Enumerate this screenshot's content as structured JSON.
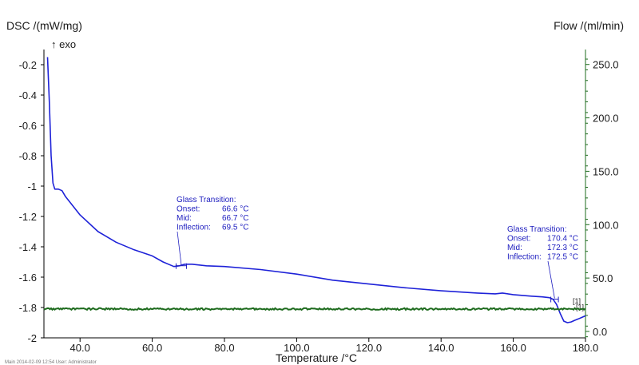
{
  "chart_data": {
    "type": "line",
    "left_axis": {
      "label": "DSC /(mW/mg)",
      "direction_note": "↑ exo",
      "range": [
        -2.0,
        -0.1
      ],
      "ticks": [
        -0.2,
        -0.4,
        -0.6,
        -0.8,
        -1,
        -1.2,
        -1.4,
        -1.6,
        -1.8,
        -2
      ],
      "tick_labels": [
        "-0.2",
        "-0.4",
        "-0.6",
        "-0.8",
        "-1",
        "-1.2",
        "-1.4",
        "-1.6",
        "-1.8",
        "-2"
      ]
    },
    "right_axis": {
      "label": "Flow /(ml/min)",
      "range": [
        -6,
        264
      ],
      "ticks": [
        0,
        50,
        100,
        150,
        200,
        250
      ],
      "tick_labels": [
        "0.0",
        "50.0",
        "100.0",
        "150.0",
        "200.0",
        "250.0"
      ]
    },
    "x_axis": {
      "label": "Temperature /°C",
      "range": [
        30,
        180
      ],
      "ticks": [
        40,
        60,
        80,
        100,
        120,
        140,
        160,
        180
      ],
      "tick_labels": [
        "40.0",
        "60.0",
        "80.0",
        "100.0",
        "120.0",
        "140.0",
        "160.0",
        "180.0"
      ]
    },
    "series": [
      {
        "axis": "left",
        "color": "#1e22d8",
        "x": [
          31.0,
          31.5,
          32.0,
          32.5,
          33.0,
          34.0,
          35.0,
          36.0,
          38.0,
          40.0,
          45.0,
          50.0,
          55.0,
          60.0,
          63.0,
          66.0,
          67.5,
          69.0,
          71.0,
          75.0,
          80.0,
          90.0,
          100.0,
          110.0,
          120.0,
          130.0,
          140.0,
          150.0,
          155.0,
          157.0,
          160.0,
          165.0,
          168.0,
          170.0,
          171.0,
          172.0,
          173.0,
          174.0,
          175.0,
          176.0,
          177.0,
          178.0,
          179.0,
          180.0
        ],
        "y": [
          -0.15,
          -0.45,
          -0.8,
          -0.98,
          -1.02,
          -1.02,
          -1.03,
          -1.07,
          -1.13,
          -1.19,
          -1.3,
          -1.37,
          -1.42,
          -1.46,
          -1.5,
          -1.53,
          -1.525,
          -1.515,
          -1.515,
          -1.525,
          -1.53,
          -1.55,
          -1.58,
          -1.62,
          -1.645,
          -1.67,
          -1.69,
          -1.705,
          -1.71,
          -1.705,
          -1.715,
          -1.725,
          -1.73,
          -1.735,
          -1.745,
          -1.78,
          -1.84,
          -1.89,
          -1.9,
          -1.895,
          -1.885,
          -1.875,
          -1.865,
          -1.855
        ],
        "end_label": "[1]"
      },
      {
        "axis": "right",
        "color": "#1e6b1e",
        "x": [
          30,
          180
        ],
        "y": [
          21,
          21
        ],
        "end_label": "[1]"
      }
    ],
    "annotations": [
      {
        "lines": [
          "Glass Transition:",
          "Onset:",
          "Mid:",
          "Inflection:"
        ],
        "values": [
          "",
          "66.6 °C",
          "66.7 °C",
          "69.5 °C"
        ],
        "marker_x": [
          66.6,
          69.5
        ],
        "marker_y": -1.53
      },
      {
        "lines": [
          "Glass Transition:",
          "Onset:",
          "Mid:",
          "Inflection:"
        ],
        "values": [
          "",
          "170.4 °C",
          "172.3 °C",
          "172.5 °C"
        ],
        "marker_x": [
          170.4,
          172.5
        ],
        "marker_y": -1.75
      }
    ],
    "grid": false
  },
  "footer": "Main    2014-02-09 12:54    User: Administrator"
}
